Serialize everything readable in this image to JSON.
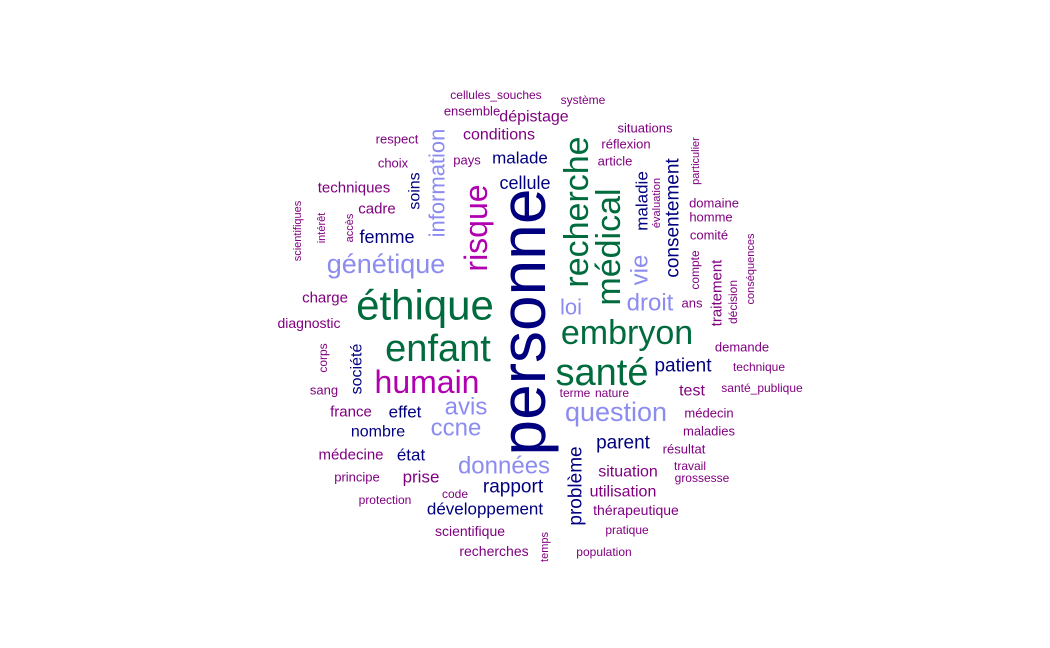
{
  "colors": {
    "navy": "#00007f",
    "green": "#006b3c",
    "magenta": "#b000b0",
    "lavender": "#8c8cf0",
    "purple": "#800080"
  },
  "words": [
    {
      "text": "personne",
      "color": "navy",
      "size": 64,
      "rot": -90
    },
    {
      "text": "éthique",
      "color": "green",
      "size": 42,
      "rot": 0
    },
    {
      "text": "enfant",
      "color": "green",
      "size": 38,
      "rot": 0
    },
    {
      "text": "santé",
      "color": "green",
      "size": 38,
      "rot": 0
    },
    {
      "text": "recherche",
      "color": "green",
      "size": 34,
      "rot": -90
    },
    {
      "text": "embryon",
      "color": "green",
      "size": 34,
      "rot": 0
    },
    {
      "text": "médical",
      "color": "green",
      "size": 34,
      "rot": -90
    },
    {
      "text": "humain",
      "color": "magenta",
      "size": 32,
      "rot": 0
    },
    {
      "text": "risque",
      "color": "magenta",
      "size": 32,
      "rot": -90
    },
    {
      "text": "génétique",
      "color": "lavender",
      "size": 27,
      "rot": 0
    },
    {
      "text": "question",
      "color": "lavender",
      "size": 27,
      "rot": 0
    },
    {
      "text": "données",
      "color": "lavender",
      "size": 24,
      "rot": 0
    },
    {
      "text": "information",
      "color": "lavender",
      "size": 22,
      "rot": -90
    },
    {
      "text": "droit",
      "color": "lavender",
      "size": 24,
      "rot": 0
    },
    {
      "text": "vie",
      "color": "lavender",
      "size": 24,
      "rot": -90
    },
    {
      "text": "avis",
      "color": "lavender",
      "size": 24,
      "rot": 0
    },
    {
      "text": "ccne",
      "color": "lavender",
      "size": 24,
      "rot": 0
    },
    {
      "text": "loi",
      "color": "lavender",
      "size": 22,
      "rot": 0
    },
    {
      "text": "consentement",
      "color": "navy",
      "size": 19,
      "rot": -90
    },
    {
      "text": "problème",
      "color": "navy",
      "size": 19,
      "rot": -90
    },
    {
      "text": "patient",
      "color": "navy",
      "size": 19,
      "rot": 0
    },
    {
      "text": "parent",
      "color": "navy",
      "size": 19,
      "rot": 0
    },
    {
      "text": "rapport",
      "color": "navy",
      "size": 19,
      "rot": 0
    },
    {
      "text": "cellule",
      "color": "navy",
      "size": 18,
      "rot": 0
    },
    {
      "text": "femme",
      "color": "navy",
      "size": 18,
      "rot": 0
    },
    {
      "text": "maladie",
      "color": "navy",
      "size": 17,
      "rot": -90
    },
    {
      "text": "développement",
      "color": "navy",
      "size": 17,
      "rot": 0
    },
    {
      "text": "malade",
      "color": "navy",
      "size": 17,
      "rot": 0
    },
    {
      "text": "soins",
      "color": "navy",
      "size": 16,
      "rot": -90
    },
    {
      "text": "société",
      "color": "navy",
      "size": 16,
      "rot": -90
    },
    {
      "text": "effet",
      "color": "navy",
      "size": 17,
      "rot": 0
    },
    {
      "text": "nombre",
      "color": "navy",
      "size": 16,
      "rot": 0
    },
    {
      "text": "état",
      "color": "navy",
      "size": 17,
      "rot": 0
    },
    {
      "text": "conditions",
      "color": "purple",
      "size": 16,
      "rot": 0
    },
    {
      "text": "dépistage",
      "color": "purple",
      "size": 16,
      "rot": 0
    },
    {
      "text": "techniques",
      "color": "purple",
      "size": 15,
      "rot": 0
    },
    {
      "text": "cadre",
      "color": "purple",
      "size": 15,
      "rot": 0
    },
    {
      "text": "charge",
      "color": "purple",
      "size": 15,
      "rot": 0
    },
    {
      "text": "traitement",
      "color": "purple",
      "size": 15,
      "rot": -90
    },
    {
      "text": "test",
      "color": "purple",
      "size": 16,
      "rot": 0
    },
    {
      "text": "france",
      "color": "purple",
      "size": 15,
      "rot": 0
    },
    {
      "text": "médecine",
      "color": "purple",
      "size": 15,
      "rot": 0
    },
    {
      "text": "prise",
      "color": "purple",
      "size": 17,
      "rot": 0
    },
    {
      "text": "situation",
      "color": "purple",
      "size": 16,
      "rot": 0
    },
    {
      "text": "utilisation",
      "color": "purple",
      "size": 16,
      "rot": 0
    },
    {
      "text": "thérapeutique",
      "color": "purple",
      "size": 14,
      "rot": 0
    },
    {
      "text": "scientifique",
      "color": "purple",
      "size": 14,
      "rot": 0
    },
    {
      "text": "recherches",
      "color": "purple",
      "size": 14,
      "rot": 0
    },
    {
      "text": "cellules_souches",
      "color": "purple",
      "size": 12,
      "rot": 0
    },
    {
      "text": "système",
      "color": "purple",
      "size": 12,
      "rot": 0
    },
    {
      "text": "ensemble",
      "color": "purple",
      "size": 13,
      "rot": 0
    },
    {
      "text": "respect",
      "color": "purple",
      "size": 13,
      "rot": 0
    },
    {
      "text": "choix",
      "color": "purple",
      "size": 13,
      "rot": 0
    },
    {
      "text": "pays",
      "color": "purple",
      "size": 13,
      "rot": 0
    },
    {
      "text": "situations",
      "color": "purple",
      "size": 13,
      "rot": 0
    },
    {
      "text": "réflexion",
      "color": "purple",
      "size": 13,
      "rot": 0
    },
    {
      "text": "article",
      "color": "purple",
      "size": 13,
      "rot": 0
    },
    {
      "text": "particulier",
      "color": "purple",
      "size": 11,
      "rot": -90
    },
    {
      "text": "évaluation",
      "color": "purple",
      "size": 11,
      "rot": -90
    },
    {
      "text": "domaine",
      "color": "purple",
      "size": 13,
      "rot": 0
    },
    {
      "text": "homme",
      "color": "purple",
      "size": 13,
      "rot": 0
    },
    {
      "text": "comité",
      "color": "purple",
      "size": 13,
      "rot": 0
    },
    {
      "text": "conséquences",
      "color": "purple",
      "size": 11,
      "rot": -90
    },
    {
      "text": "compte",
      "color": "purple",
      "size": 12,
      "rot": -90
    },
    {
      "text": "ans",
      "color": "purple",
      "size": 13,
      "rot": 0
    },
    {
      "text": "décision",
      "color": "purple",
      "size": 12,
      "rot": -90
    },
    {
      "text": "scientifiques",
      "color": "purple",
      "size": 11,
      "rot": -90
    },
    {
      "text": "intérêt",
      "color": "purple",
      "size": 11,
      "rot": -90
    },
    {
      "text": "accès",
      "color": "purple",
      "size": 11,
      "rot": -90
    },
    {
      "text": "diagnostic",
      "color": "purple",
      "size": 14,
      "rot": 0
    },
    {
      "text": "corps",
      "color": "purple",
      "size": 12,
      "rot": -90
    },
    {
      "text": "sang",
      "color": "purple",
      "size": 13,
      "rot": 0
    },
    {
      "text": "demande",
      "color": "purple",
      "size": 13,
      "rot": 0
    },
    {
      "text": "technique",
      "color": "purple",
      "size": 12,
      "rot": 0
    },
    {
      "text": "santé_publique",
      "color": "purple",
      "size": 12,
      "rot": 0
    },
    {
      "text": "terme",
      "color": "purple",
      "size": 12,
      "rot": 0
    },
    {
      "text": "nature",
      "color": "purple",
      "size": 12,
      "rot": 0
    },
    {
      "text": "médecin",
      "color": "purple",
      "size": 13,
      "rot": 0
    },
    {
      "text": "maladies",
      "color": "purple",
      "size": 13,
      "rot": 0
    },
    {
      "text": "résultat",
      "color": "purple",
      "size": 13,
      "rot": 0
    },
    {
      "text": "travail",
      "color": "purple",
      "size": 12,
      "rot": 0
    },
    {
      "text": "grossesse",
      "color": "purple",
      "size": 12,
      "rot": 0
    },
    {
      "text": "principe",
      "color": "purple",
      "size": 13,
      "rot": 0
    },
    {
      "text": "protection",
      "color": "purple",
      "size": 12,
      "rot": 0
    },
    {
      "text": "code",
      "color": "purple",
      "size": 12,
      "rot": 0
    },
    {
      "text": "pratique",
      "color": "purple",
      "size": 12,
      "rot": 0
    },
    {
      "text": "temps",
      "color": "purple",
      "size": 11,
      "rot": -90
    },
    {
      "text": "population",
      "color": "purple",
      "size": 12,
      "rot": 0
    }
  ]
}
